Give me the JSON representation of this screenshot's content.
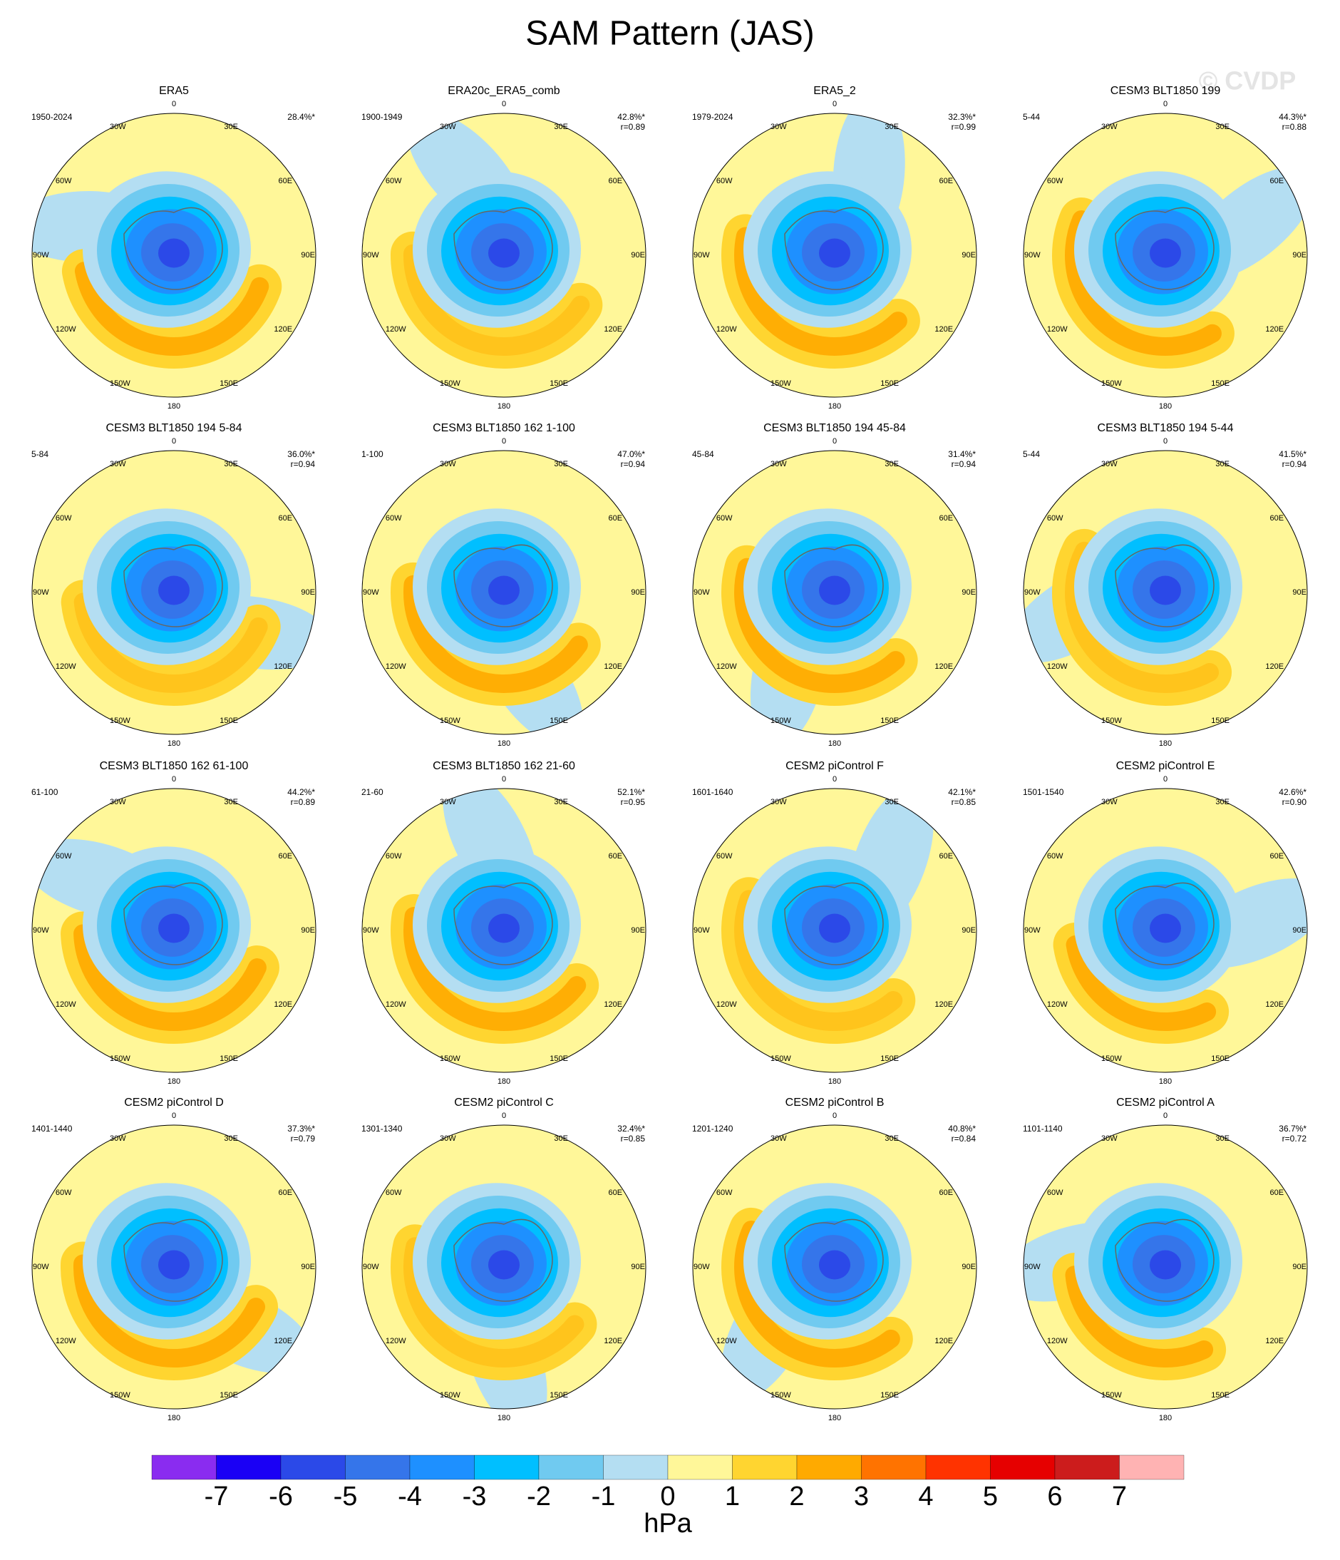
{
  "title": "SAM Pattern (JAS)",
  "watermark": "© CVDP",
  "longitude_labels": [
    "0",
    "30E",
    "60E",
    "90E",
    "120E",
    "150E",
    "180",
    "150W",
    "120W",
    "90W",
    "60W",
    "30W"
  ],
  "panels": [
    {
      "title": "ERA5",
      "period": "1950-2024",
      "percent": "28.4%*"
    },
    {
      "title": "ERA20c_ERA5_comb",
      "period": "1900-1949",
      "percent": "42.8%*",
      "r": "r=0.89"
    },
    {
      "title": "ERA5_2",
      "period": "1979-2024",
      "percent": "32.3%*",
      "r": "r=0.99"
    },
    {
      "title": "CESM3 BLT1850 199",
      "period": "5-44",
      "percent": "44.3%*",
      "r": "r=0.88"
    },
    {
      "title": "CESM3 BLT1850 194 5-84",
      "period": "5-84",
      "percent": "36.0%*",
      "r": "r=0.94"
    },
    {
      "title": "CESM3 BLT1850 162 1-100",
      "period": "1-100",
      "percent": "47.0%*",
      "r": "r=0.94"
    },
    {
      "title": "CESM3 BLT1850 194 45-84",
      "period": "45-84",
      "percent": "31.4%*",
      "r": "r=0.94"
    },
    {
      "title": "CESM3 BLT1850 194 5-44",
      "period": "5-44",
      "percent": "41.5%*",
      "r": "r=0.94"
    },
    {
      "title": "CESM3 BLT1850 162 61-100",
      "period": "61-100",
      "percent": "44.2%*",
      "r": "r=0.89"
    },
    {
      "title": "CESM3 BLT1850 162 21-60",
      "period": "21-60",
      "percent": "52.1%*",
      "r": "r=0.95"
    },
    {
      "title": "CESM2 piControl F",
      "period": "1601-1640",
      "percent": "42.1%*",
      "r": "r=0.85"
    },
    {
      "title": "CESM2 piControl E",
      "period": "1501-1540",
      "percent": "42.6%*",
      "r": "r=0.90"
    },
    {
      "title": "CESM2 piControl D",
      "period": "1401-1440",
      "percent": "37.3%*",
      "r": "r=0.79"
    },
    {
      "title": "CESM2 piControl C",
      "period": "1301-1340",
      "percent": "32.4%*",
      "r": "r=0.85"
    },
    {
      "title": "CESM2 piControl B",
      "period": "1201-1240",
      "percent": "40.8%*",
      "r": "r=0.84"
    },
    {
      "title": "CESM2 piControl A",
      "period": "1101-1140",
      "percent": "36.7%*",
      "r": "r=0.72"
    }
  ],
  "colorbar": {
    "colors": [
      "#8a2cf0",
      "#1a00f5",
      "#2b49e8",
      "#3575ea",
      "#1e90ff",
      "#00bfff",
      "#70caf0",
      "#b4def2",
      "#fff799",
      "#ffd530",
      "#ffaa00",
      "#ff7300",
      "#ff3300",
      "#e60000",
      "#cc1c1c",
      "#ffb3b3"
    ],
    "ticks": [
      -7,
      -6,
      -5,
      -4,
      -3,
      -2,
      -1,
      0,
      1,
      2,
      3,
      4,
      5,
      6,
      7
    ],
    "units": "hPa"
  }
}
